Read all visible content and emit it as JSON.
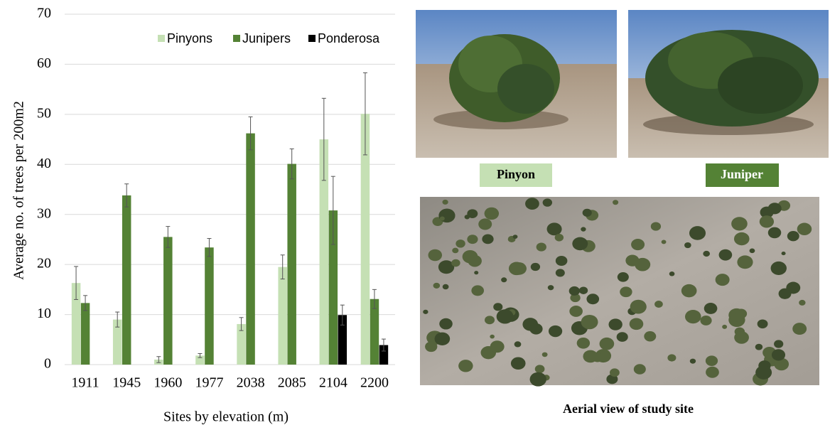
{
  "chart_data": {
    "type": "bar",
    "x_label": "Sites by elevation (m)",
    "y_label": "Average no. of trees per 200m2",
    "categories": [
      "1911",
      "1945",
      "1960",
      "1977",
      "2038",
      "2085",
      "2104",
      "2200"
    ],
    "series": [
      {
        "name": "Pinyons",
        "color": "#c5e0b4",
        "values": [
          16.3,
          9.0,
          1.0,
          1.8,
          8.1,
          19.5,
          45.0,
          50.1
        ],
        "errors": [
          3.3,
          1.5,
          0.6,
          0.4,
          1.3,
          2.4,
          8.2,
          8.2
        ]
      },
      {
        "name": "Junipers",
        "color": "#548235",
        "values": [
          12.3,
          33.8,
          25.5,
          23.4,
          46.2,
          40.1,
          30.8,
          13.1
        ],
        "errors": [
          1.5,
          2.3,
          2.1,
          1.8,
          3.3,
          3.0,
          6.8,
          1.9
        ]
      },
      {
        "name": "Ponderosa",
        "color": "#000000",
        "values": [
          0,
          0,
          0,
          0,
          0,
          0,
          9.9,
          3.9
        ],
        "errors": [
          null,
          null,
          null,
          null,
          null,
          null,
          2.0,
          1.2
        ]
      }
    ],
    "ylim": [
      0,
      70
    ],
    "yticks": [
      0,
      10,
      20,
      30,
      40,
      50,
      60,
      70
    ],
    "grid": true,
    "legend": "top-right"
  },
  "photos": {
    "pinyon_label": "Pinyon",
    "juniper_label": "Juniper",
    "aerial_caption": "Aerial view of study site"
  }
}
